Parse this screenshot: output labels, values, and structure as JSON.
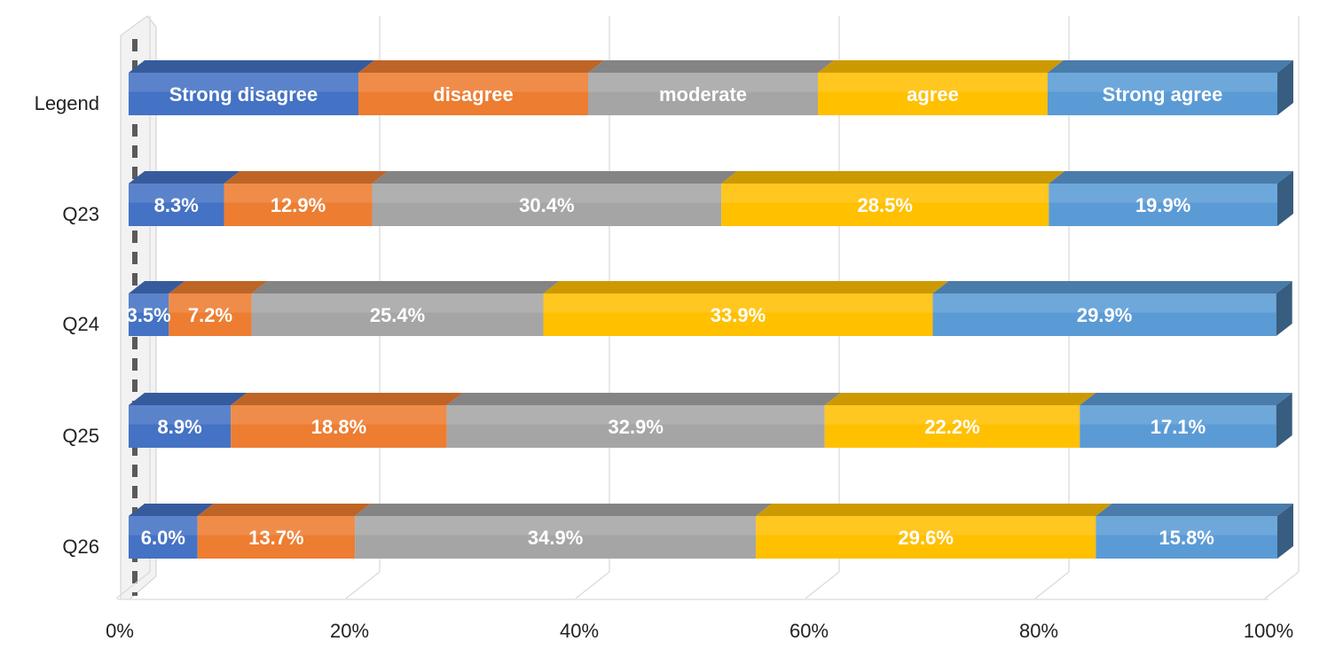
{
  "chart_data": {
    "type": "bar",
    "orientation": "horizontal",
    "stacked": true,
    "percent_stacked": true,
    "categories": [
      "Legend",
      "Q23",
      "Q24",
      "Q25",
      "Q26"
    ],
    "series": [
      {
        "name": "Strong disagree",
        "color": "#4472C4",
        "values": [
          20,
          8.3,
          3.5,
          8.9,
          6.0
        ],
        "labels": [
          "Strong disagree",
          "8.3%",
          "3.5%",
          "8.9%",
          "6.0%"
        ]
      },
      {
        "name": "disagree",
        "color": "#ED7D31",
        "values": [
          20,
          12.9,
          7.2,
          18.8,
          13.7
        ],
        "labels": [
          "disagree",
          "12.9%",
          "7.2%",
          "18.8%",
          "13.7%"
        ]
      },
      {
        "name": "moderate",
        "color": "#A5A5A5",
        "values": [
          20,
          30.4,
          25.4,
          32.9,
          34.9
        ],
        "labels": [
          "moderate",
          "30.4%",
          "25.4%",
          "32.9%",
          "34.9%"
        ]
      },
      {
        "name": "agree",
        "color": "#FFC000",
        "values": [
          20,
          28.5,
          33.9,
          22.2,
          29.6
        ],
        "labels": [
          "agree",
          "28.5%",
          "33.9%",
          "22.2%",
          "29.6%"
        ]
      },
      {
        "name": "Strong agree",
        "color": "#5B9BD5",
        "values": [
          20,
          19.9,
          29.9,
          17.1,
          15.8
        ],
        "labels": [
          "Strong agree",
          "19.9%",
          "29.9%",
          "17.1%",
          "15.8%"
        ]
      }
    ],
    "x_ticks": [
      "0%",
      "20%",
      "40%",
      "60%",
      "80%",
      "100%"
    ],
    "xlim": [
      0,
      100
    ],
    "grid": "vertical",
    "legend": "none",
    "style": "3d"
  }
}
